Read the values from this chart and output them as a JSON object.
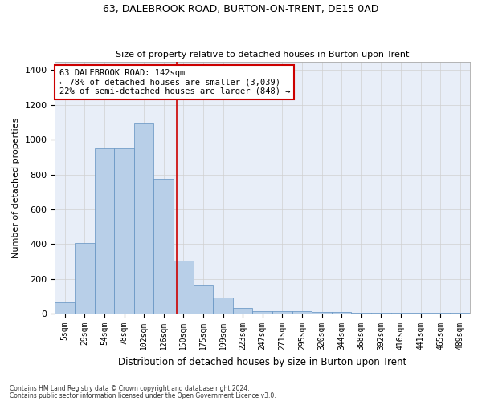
{
  "title_line1": "63, DALEBROOK ROAD, BURTON-ON-TRENT, DE15 0AD",
  "title_line2": "Size of property relative to detached houses in Burton upon Trent",
  "xlabel": "Distribution of detached houses by size in Burton upon Trent",
  "ylabel": "Number of detached properties",
  "footer1": "Contains HM Land Registry data © Crown copyright and database right 2024.",
  "footer2": "Contains public sector information licensed under the Open Government Licence v3.0.",
  "annotation_line1": "63 DALEBROOK ROAD: 142sqm",
  "annotation_line2": "← 78% of detached houses are smaller (3,039)",
  "annotation_line3": "22% of semi-detached houses are larger (848) →",
  "bar_color": "#b8cfe8",
  "bar_edge_color": "#6090c0",
  "vline_color": "#cc0000",
  "annotation_box_edge": "#cc0000",
  "background_color": "#ffffff",
  "plot_bg_color": "#e8eef8",
  "grid_color": "#d0d0d0",
  "categories": [
    "5sqm",
    "29sqm",
    "54sqm",
    "78sqm",
    "102sqm",
    "126sqm",
    "150sqm",
    "175sqm",
    "199sqm",
    "223sqm",
    "247sqm",
    "271sqm",
    "295sqm",
    "320sqm",
    "344sqm",
    "368sqm",
    "392sqm",
    "416sqm",
    "441sqm",
    "465sqm",
    "489sqm"
  ],
  "values": [
    65,
    405,
    950,
    950,
    1100,
    775,
    305,
    165,
    95,
    35,
    15,
    15,
    15,
    10,
    10,
    5,
    5,
    5,
    5,
    5,
    5
  ],
  "ylim": [
    0,
    1450
  ],
  "yticks": [
    0,
    200,
    400,
    600,
    800,
    1000,
    1200,
    1400
  ],
  "vline_pos": 5.67,
  "fig_width": 6.0,
  "fig_height": 5.0,
  "dpi": 100
}
